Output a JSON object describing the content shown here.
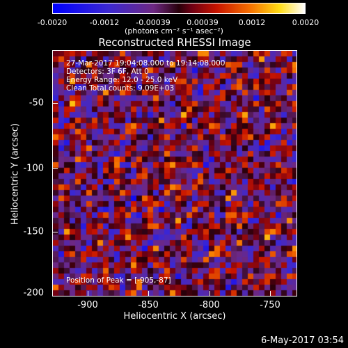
{
  "colorbar": {
    "ticks": [
      "-0.0020",
      "-0.0012",
      "-0.00039",
      "0.00039",
      "0.0012",
      "0.0020"
    ],
    "units": "(photons cm⁻² s⁻¹ asec⁻²)",
    "min": -0.002,
    "max": 0.002,
    "colormap": "rainbow-blue-to-white"
  },
  "image": {
    "title": "Reconstructed RHESSI Image",
    "annotations": {
      "time": "27-Mar-2017 19:04:08.000 to 19:14:08.000",
      "detectors": "Detectors: 3F 6F, Att 0",
      "energy": "Energy Range: 12.0 - 25.0 keV",
      "method": "Clean     Total counts: 9.09E+03",
      "peak": "Position of Peak = [-905,-87]"
    },
    "x_axis": {
      "label": "Heliocentric X (arcsec)",
      "ticks": [
        "-900",
        "-850",
        "-800",
        "-750"
      ],
      "range": [
        -930,
        -735
      ]
    },
    "y_axis": {
      "label": "Heliocentric Y (arcsec)",
      "ticks": [
        "-50",
        "-100",
        "-150",
        "-200"
      ],
      "range": [
        -202,
        -25
      ]
    }
  },
  "datestamp": "6-May-2017 03:54"
}
